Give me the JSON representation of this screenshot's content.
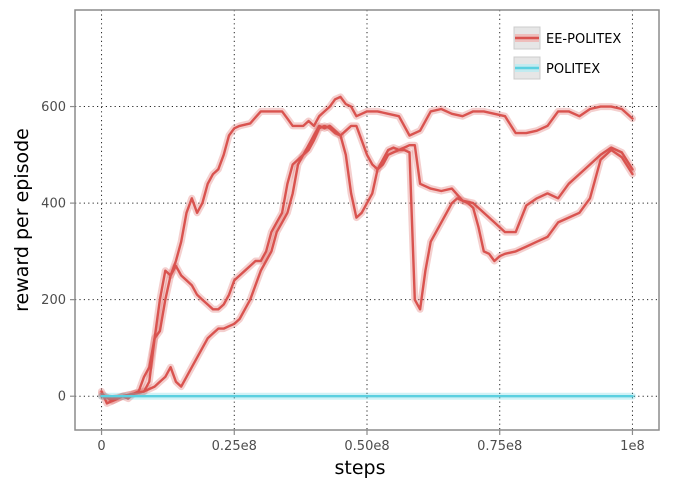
{
  "chart_data": {
    "type": "line",
    "title": "",
    "xlabel": "steps",
    "ylabel": "reward per episode",
    "xlim": [
      -5000000,
      105000000
    ],
    "ylim": [
      -70,
      800
    ],
    "xticks": [
      0,
      25000000,
      50000000,
      75000000,
      100000000
    ],
    "xtick_labels": [
      "0",
      "0.25e8",
      "0.50e8",
      "0.75e8",
      "1e8"
    ],
    "yticks": [
      0,
      200,
      400,
      600
    ],
    "ytick_labels": [
      "0",
      "200",
      "400",
      "600"
    ],
    "grid": true,
    "legend_position": "top-right",
    "legend": [
      {
        "label": "EE-POLITEX",
        "color": "#d9534f"
      },
      {
        "label": "POLITEX",
        "color": "#5bd0e0"
      }
    ],
    "series": [
      {
        "group": "EE-POLITEX",
        "color": "#d9534f",
        "x": [
          0,
          1,
          2,
          3,
          4,
          5,
          6,
          7,
          8,
          9,
          10,
          11,
          12,
          13,
          14,
          15,
          16,
          17,
          18,
          19,
          20,
          21,
          22,
          23,
          24,
          25,
          26,
          28,
          30,
          32,
          34,
          35,
          36,
          37,
          38,
          39,
          40,
          41,
          42,
          43,
          44,
          45,
          46,
          47,
          48,
          49,
          50,
          52,
          54,
          56,
          58,
          60,
          62,
          64,
          66,
          68,
          70,
          72,
          74,
          76,
          78,
          80,
          82,
          84,
          86,
          88,
          90,
          92,
          94,
          96,
          98,
          100
        ],
        "y": [
          10,
          -15,
          -10,
          -5,
          0,
          -5,
          5,
          10,
          40,
          60,
          120,
          135,
          200,
          250,
          280,
          320,
          380,
          410,
          380,
          400,
          440,
          460,
          470,
          500,
          540,
          555,
          560,
          565,
          590,
          590,
          590,
          575,
          560,
          560,
          560,
          570,
          560,
          580,
          590,
          600,
          615,
          620,
          605,
          600,
          580,
          585,
          590,
          590,
          585,
          580,
          540,
          550,
          590,
          595,
          585,
          580,
          590,
          590,
          585,
          580,
          545,
          545,
          550,
          560,
          590,
          590,
          580,
          595,
          600,
          600,
          595,
          575
        ]
      },
      {
        "group": "EE-POLITEX",
        "color": "#d9534f",
        "x": [
          0,
          2,
          4,
          6,
          8,
          9,
          10,
          11,
          12,
          13,
          14,
          15,
          16,
          17,
          18,
          19,
          20,
          21,
          22,
          23,
          24,
          25,
          26,
          27,
          28,
          29,
          30,
          31,
          32,
          33,
          34,
          35,
          36,
          37,
          38,
          39,
          40,
          41,
          42,
          43,
          44,
          45,
          46,
          47,
          48,
          49,
          50,
          51,
          52,
          53,
          54,
          55,
          56,
          57,
          58,
          59,
          60,
          62,
          64,
          66,
          68,
          70,
          72,
          74,
          76,
          78,
          80,
          82,
          84,
          86,
          88,
          90,
          92,
          94,
          96,
          98,
          100
        ],
        "y": [
          5,
          -10,
          0,
          5,
          10,
          30,
          120,
          200,
          260,
          250,
          270,
          250,
          240,
          230,
          210,
          200,
          190,
          180,
          180,
          190,
          210,
          240,
          250,
          260,
          270,
          280,
          280,
          300,
          340,
          360,
          380,
          440,
          480,
          490,
          500,
          520,
          540,
          560,
          555,
          560,
          550,
          540,
          500,
          420,
          370,
          380,
          400,
          420,
          470,
          480,
          500,
          505,
          510,
          515,
          520,
          520,
          440,
          430,
          425,
          430,
          405,
          400,
          380,
          360,
          340,
          340,
          395,
          410,
          420,
          410,
          440,
          460,
          480,
          500,
          515,
          505,
          470
        ]
      },
      {
        "group": "EE-POLITEX",
        "color": "#d9534f",
        "x": [
          0,
          2,
          4,
          6,
          8,
          10,
          11,
          12,
          13,
          14,
          15,
          16,
          17,
          18,
          19,
          20,
          21,
          22,
          23,
          24,
          25,
          26,
          27,
          28,
          29,
          30,
          31,
          32,
          33,
          34,
          35,
          36,
          37,
          38,
          39,
          40,
          41,
          42,
          43,
          44,
          45,
          46,
          47,
          48,
          49,
          50,
          51,
          52,
          53,
          54,
          55,
          56,
          57,
          58,
          59,
          60,
          61,
          62,
          63,
          64,
          65,
          66,
          67,
          68,
          69,
          70,
          71,
          72,
          73,
          74,
          75,
          76,
          78,
          80,
          82,
          84,
          86,
          88,
          90,
          92,
          94,
          96,
          98,
          100
        ],
        "y": [
          0,
          -5,
          0,
          5,
          10,
          20,
          30,
          40,
          60,
          30,
          20,
          40,
          60,
          80,
          100,
          120,
          130,
          140,
          140,
          145,
          150,
          160,
          180,
          200,
          230,
          260,
          280,
          300,
          340,
          360,
          380,
          420,
          480,
          500,
          510,
          530,
          555,
          560,
          555,
          545,
          540,
          550,
          560,
          560,
          530,
          500,
          480,
          470,
          490,
          510,
          515,
          510,
          510,
          505,
          200,
          180,
          260,
          320,
          340,
          360,
          380,
          400,
          410,
          405,
          400,
          390,
          350,
          300,
          295,
          280,
          290,
          295,
          300,
          310,
          320,
          330,
          360,
          370,
          380,
          410,
          490,
          510,
          495,
          460
        ]
      },
      {
        "group": "POLITEX",
        "color": "#5bd0e0",
        "x": [
          0,
          10,
          20,
          30,
          40,
          50,
          60,
          70,
          80,
          90,
          100
        ],
        "y": [
          0,
          0,
          0,
          0,
          0,
          0,
          0,
          0,
          0,
          0,
          0
        ]
      }
    ]
  }
}
